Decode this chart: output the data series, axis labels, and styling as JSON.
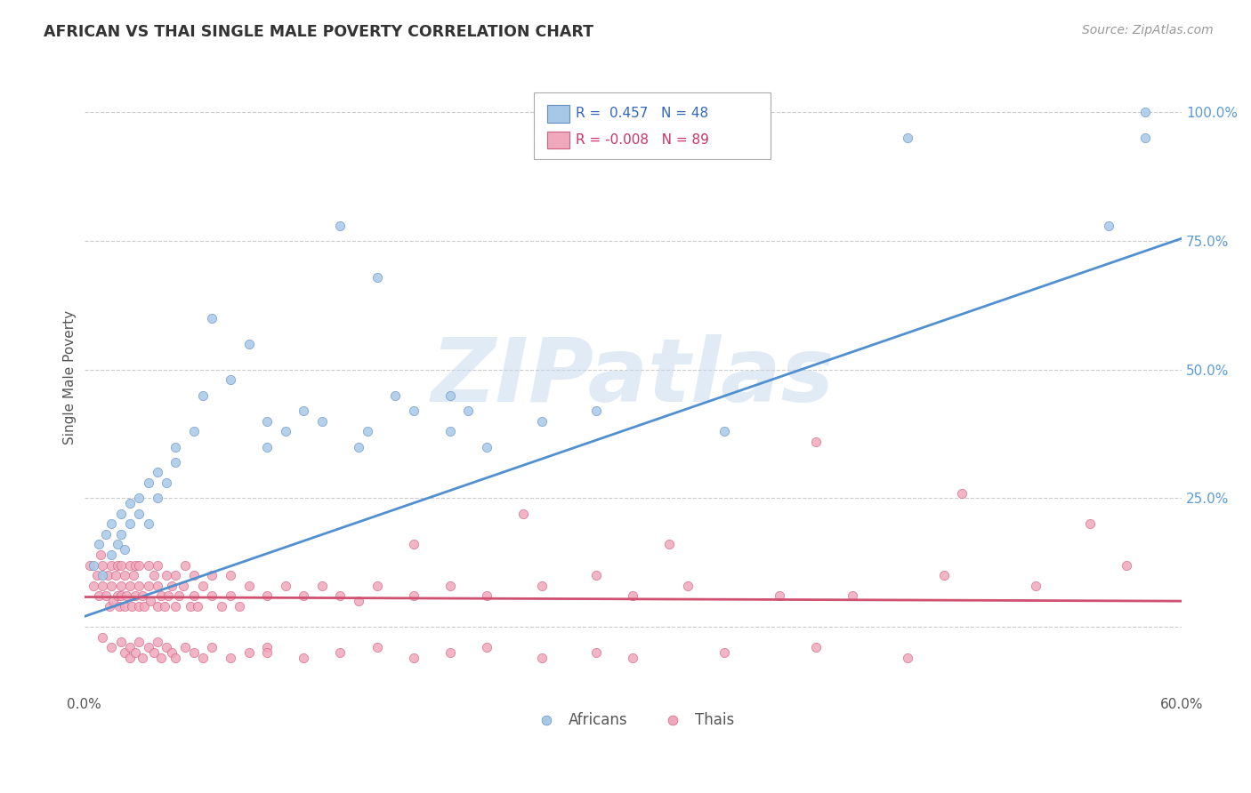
{
  "title": "AFRICAN VS THAI SINGLE MALE POVERTY CORRELATION CHART",
  "source": "Source: ZipAtlas.com",
  "ylabel": "Single Male Poverty",
  "watermark": "ZIPatlas",
  "xlim": [
    0.0,
    0.6
  ],
  "ylim": [
    -0.13,
    1.1
  ],
  "yticks": [
    0.0,
    0.25,
    0.5,
    0.75,
    1.0
  ],
  "ytick_labels": [
    "",
    "25.0%",
    "50.0%",
    "75.0%",
    "100.0%"
  ],
  "xticks": [
    0.0,
    0.1,
    0.2,
    0.3,
    0.4,
    0.5,
    0.6
  ],
  "xtick_labels": [
    "0.0%",
    "",
    "",
    "",
    "",
    "",
    "60.0%"
  ],
  "african_R": 0.457,
  "african_N": 48,
  "thai_R": -0.008,
  "thai_N": 89,
  "african_color": "#A8C8E8",
  "thai_color": "#F0A8BC",
  "african_edge_color": "#6090C0",
  "thai_edge_color": "#D06080",
  "african_line_color": "#5090D0",
  "thai_line_color": "#D05070",
  "background_color": "#FFFFFF",
  "grid_color": "#CCCCCC",
  "title_color": "#333333",
  "right_tick_color": "#5B9BD5",
  "af_line_x0": 0.0,
  "af_line_x1": 0.6,
  "af_line_y0": 0.02,
  "af_line_y1": 0.755,
  "th_line_x0": 0.0,
  "th_line_x1": 0.6,
  "th_line_y0": 0.058,
  "th_line_y1": 0.05,
  "african_scatter_x": [
    0.005,
    0.008,
    0.01,
    0.012,
    0.015,
    0.015,
    0.018,
    0.02,
    0.02,
    0.022,
    0.025,
    0.025,
    0.03,
    0.03,
    0.035,
    0.035,
    0.04,
    0.04,
    0.045,
    0.05,
    0.05,
    0.06,
    0.065,
    0.07,
    0.08,
    0.09,
    0.1,
    0.1,
    0.11,
    0.12,
    0.13,
    0.15,
    0.155,
    0.17,
    0.18,
    0.2,
    0.21,
    0.22,
    0.14,
    0.16,
    0.28,
    0.35,
    0.45,
    0.56,
    0.58,
    0.58,
    0.2,
    0.25
  ],
  "african_scatter_y": [
    0.12,
    0.16,
    0.1,
    0.18,
    0.14,
    0.2,
    0.16,
    0.18,
    0.22,
    0.15,
    0.2,
    0.24,
    0.22,
    0.25,
    0.2,
    0.28,
    0.25,
    0.3,
    0.28,
    0.32,
    0.35,
    0.38,
    0.45,
    0.6,
    0.48,
    0.55,
    0.35,
    0.4,
    0.38,
    0.42,
    0.4,
    0.35,
    0.38,
    0.45,
    0.42,
    0.38,
    0.42,
    0.35,
    0.78,
    0.68,
    0.42,
    0.38,
    0.95,
    0.78,
    0.95,
    1.0,
    0.45,
    0.4
  ],
  "thai_scatter_x": [
    0.003,
    0.005,
    0.007,
    0.008,
    0.009,
    0.01,
    0.01,
    0.012,
    0.013,
    0.014,
    0.015,
    0.015,
    0.016,
    0.017,
    0.018,
    0.018,
    0.019,
    0.02,
    0.02,
    0.02,
    0.022,
    0.022,
    0.023,
    0.025,
    0.025,
    0.026,
    0.027,
    0.028,
    0.028,
    0.03,
    0.03,
    0.03,
    0.032,
    0.033,
    0.035,
    0.035,
    0.036,
    0.038,
    0.04,
    0.04,
    0.04,
    0.042,
    0.044,
    0.045,
    0.046,
    0.048,
    0.05,
    0.05,
    0.052,
    0.054,
    0.055,
    0.058,
    0.06,
    0.06,
    0.062,
    0.065,
    0.07,
    0.07,
    0.075,
    0.08,
    0.08,
    0.085,
    0.09,
    0.1,
    0.11,
    0.12,
    0.13,
    0.14,
    0.15,
    0.16,
    0.18,
    0.2,
    0.22,
    0.25,
    0.28,
    0.3,
    0.33,
    0.38,
    0.42,
    0.47,
    0.52,
    0.57,
    0.24,
    0.32,
    0.4,
    0.48,
    0.55,
    0.18,
    0.1
  ],
  "thai_scatter_y": [
    0.12,
    0.08,
    0.1,
    0.06,
    0.14,
    0.08,
    0.12,
    0.06,
    0.1,
    0.04,
    0.08,
    0.12,
    0.05,
    0.1,
    0.06,
    0.12,
    0.04,
    0.08,
    0.12,
    0.06,
    0.04,
    0.1,
    0.06,
    0.08,
    0.12,
    0.04,
    0.1,
    0.06,
    0.12,
    0.04,
    0.08,
    0.12,
    0.06,
    0.04,
    0.08,
    0.12,
    0.05,
    0.1,
    0.04,
    0.08,
    0.12,
    0.06,
    0.04,
    0.1,
    0.06,
    0.08,
    0.04,
    0.1,
    0.06,
    0.08,
    0.12,
    0.04,
    0.06,
    0.1,
    0.04,
    0.08,
    0.06,
    0.1,
    0.04,
    0.06,
    0.1,
    0.04,
    0.08,
    0.06,
    0.08,
    0.06,
    0.08,
    0.06,
    0.05,
    0.08,
    0.06,
    0.08,
    0.06,
    0.08,
    0.1,
    0.06,
    0.08,
    0.06,
    0.06,
    0.1,
    0.08,
    0.12,
    0.22,
    0.16,
    0.36,
    0.26,
    0.2,
    0.16,
    -0.05
  ],
  "thai_below_x": [
    0.01,
    0.015,
    0.02,
    0.022,
    0.025,
    0.025,
    0.028,
    0.03,
    0.032,
    0.035,
    0.038,
    0.04,
    0.042,
    0.045,
    0.048,
    0.05,
    0.055,
    0.06,
    0.065,
    0.07,
    0.08,
    0.09,
    0.1,
    0.12,
    0.14,
    0.16,
    0.18,
    0.2,
    0.22,
    0.25,
    0.28,
    0.3,
    0.35,
    0.4,
    0.45
  ],
  "thai_below_y": [
    -0.02,
    -0.04,
    -0.03,
    -0.05,
    -0.04,
    -0.06,
    -0.05,
    -0.03,
    -0.06,
    -0.04,
    -0.05,
    -0.03,
    -0.06,
    -0.04,
    -0.05,
    -0.06,
    -0.04,
    -0.05,
    -0.06,
    -0.04,
    -0.06,
    -0.05,
    -0.04,
    -0.06,
    -0.05,
    -0.04,
    -0.06,
    -0.05,
    -0.04,
    -0.06,
    -0.05,
    -0.06,
    -0.05,
    -0.04,
    -0.06
  ]
}
